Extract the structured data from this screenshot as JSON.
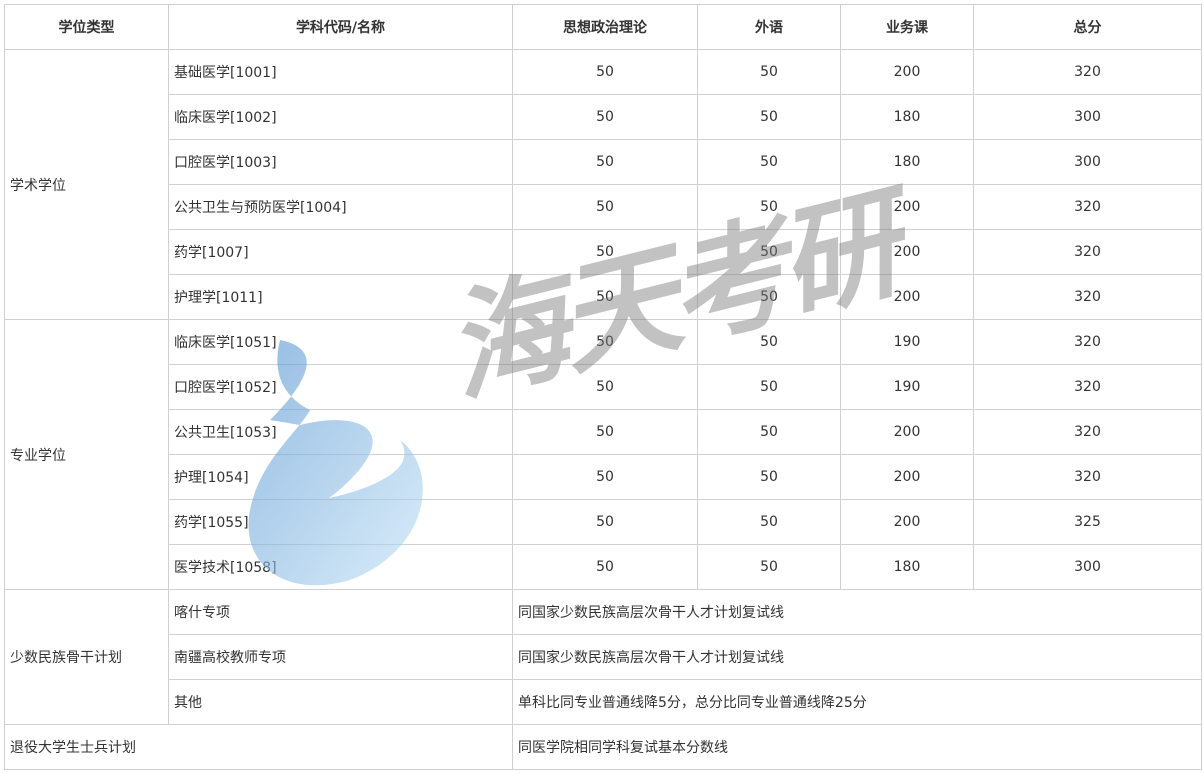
{
  "headers": [
    "学位类型",
    "学科代码/名称",
    "思想政治理论",
    "外语",
    "业务课",
    "总分"
  ],
  "academic": {
    "type": "学术学位",
    "rows": [
      {
        "name": "基础医学[1001]",
        "politics": "50",
        "language": "50",
        "major": "200",
        "total": "320"
      },
      {
        "name": "临床医学[1002]",
        "politics": "50",
        "language": "50",
        "major": "180",
        "total": "300"
      },
      {
        "name": "口腔医学[1003]",
        "politics": "50",
        "language": "50",
        "major": "180",
        "total": "300"
      },
      {
        "name": "公共卫生与预防医学[1004]",
        "politics": "50",
        "language": "50",
        "major": "200",
        "total": "320"
      },
      {
        "name": "药学[1007]",
        "politics": "50",
        "language": "50",
        "major": "200",
        "total": "320"
      },
      {
        "name": "护理学[1011]",
        "politics": "50",
        "language": "50",
        "major": "200",
        "total": "320"
      }
    ]
  },
  "professional": {
    "type": "专业学位",
    "rows": [
      {
        "name": "临床医学[1051]",
        "politics": "50",
        "language": "50",
        "major": "190",
        "total": "320"
      },
      {
        "name": "口腔医学[1052]",
        "politics": "50",
        "language": "50",
        "major": "190",
        "total": "320"
      },
      {
        "name": "公共卫生[1053]",
        "politics": "50",
        "language": "50",
        "major": "200",
        "total": "320"
      },
      {
        "name": "护理[1054]",
        "politics": "50",
        "language": "50",
        "major": "200",
        "total": "320"
      },
      {
        "name": "药学[1055]",
        "politics": "50",
        "language": "50",
        "major": "200",
        "total": "325"
      },
      {
        "name": "医学技术[1058]",
        "politics": "50",
        "language": "50",
        "major": "180",
        "total": "300"
      }
    ]
  },
  "minority": {
    "type": "少数民族骨干计划",
    "rows": [
      {
        "name": "喀什专项",
        "note": "同国家少数民族高层次骨干人才计划复试线"
      },
      {
        "name": "南疆高校教师专项",
        "note": "同国家少数民族高层次骨干人才计划复试线"
      },
      {
        "name": "其他",
        "note": "单科比同专业普通线降5分，总分比同专业普通线降25分"
      }
    ]
  },
  "veteran": {
    "type": "退役大学生士兵计划",
    "note": "同医学院相同学科复试基本分数线"
  },
  "watermark": {
    "text": "海天考研",
    "logo_color": "#7fb6e0",
    "text_color": "#787878"
  }
}
